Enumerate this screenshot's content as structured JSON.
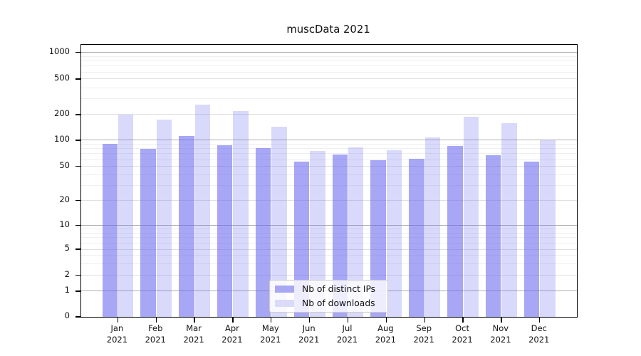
{
  "title": "muscData 2021",
  "chart_data": {
    "type": "bar",
    "title": "muscData 2021",
    "categories": [
      "Jan",
      "Feb",
      "Mar",
      "Apr",
      "May",
      "Jun",
      "Jul",
      "Aug",
      "Sep",
      "Oct",
      "Nov",
      "Dec"
    ],
    "category_year": "2021",
    "series": [
      {
        "name": "Nb of distinct IPs",
        "base_color": "#6666ee",
        "fill": "rgba(102,102,238,0.575)",
        "legend_color": "#a7a7f3",
        "values": [
          91,
          79,
          111,
          88,
          81,
          57,
          68,
          59,
          61,
          86,
          67,
          57
        ]
      },
      {
        "name": "Nb of downloads",
        "base_color": "#6666ee",
        "fill": "rgba(102,102,238,0.25)",
        "legend_color": "#dadaf9",
        "values": [
          200,
          176,
          258,
          219,
          143,
          75,
          83,
          76,
          108,
          188,
          158,
          100
        ]
      }
    ],
    "y_axis": {
      "scale": "symlog",
      "ticks": [
        0,
        1,
        2,
        5,
        10,
        20,
        50,
        100,
        200,
        500,
        1000
      ],
      "tick_labels": [
        "0",
        "1",
        "2",
        "5",
        "10",
        "20",
        "50",
        "100",
        "200",
        "500",
        "1000"
      ],
      "decade_lines": [
        1,
        10,
        100,
        1000
      ],
      "labeled_lines": [
        2,
        5,
        20,
        50,
        200,
        500
      ],
      "minor_lines": [
        3,
        4,
        6,
        7,
        8,
        9,
        30,
        40,
        60,
        70,
        80,
        90,
        300,
        400,
        600,
        700,
        800,
        900
      ]
    },
    "legend_position": "lower-center-inside",
    "grid": "both",
    "layout_hints": {
      "anchor_fractions": [
        0,
        0.0946,
        0.1529,
        0.2484,
        0.3359,
        0.4275,
        0.5529,
        0.6497,
        0.7438,
        0.8745,
        0.972
      ],
      "group_first_center": 51.4,
      "group_pitch": 53.85,
      "bar_width": 21.4
    }
  }
}
